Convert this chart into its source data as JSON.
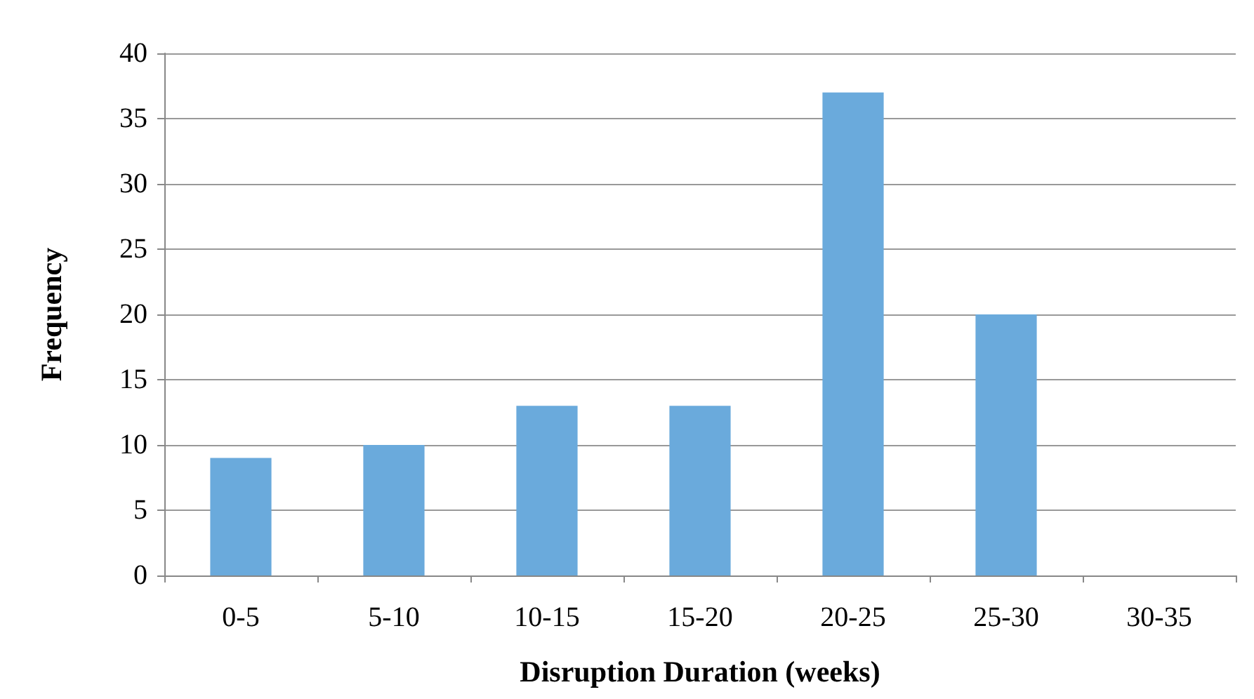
{
  "chart_data": {
    "type": "bar",
    "xlabel": "Disruption Duration (weeks)",
    "ylabel": "Frequency",
    "categories": [
      "0-5",
      "5-10",
      "10-15",
      "15-20",
      "20-25",
      "25-30",
      "30-35"
    ],
    "values": [
      9,
      10,
      13,
      13,
      37,
      20,
      0
    ],
    "color": "#6aaadc",
    "ylim": [
      0,
      40
    ],
    "yticks": [
      0,
      5,
      10,
      15,
      20,
      25,
      30,
      35,
      40
    ],
    "grid": "y"
  }
}
